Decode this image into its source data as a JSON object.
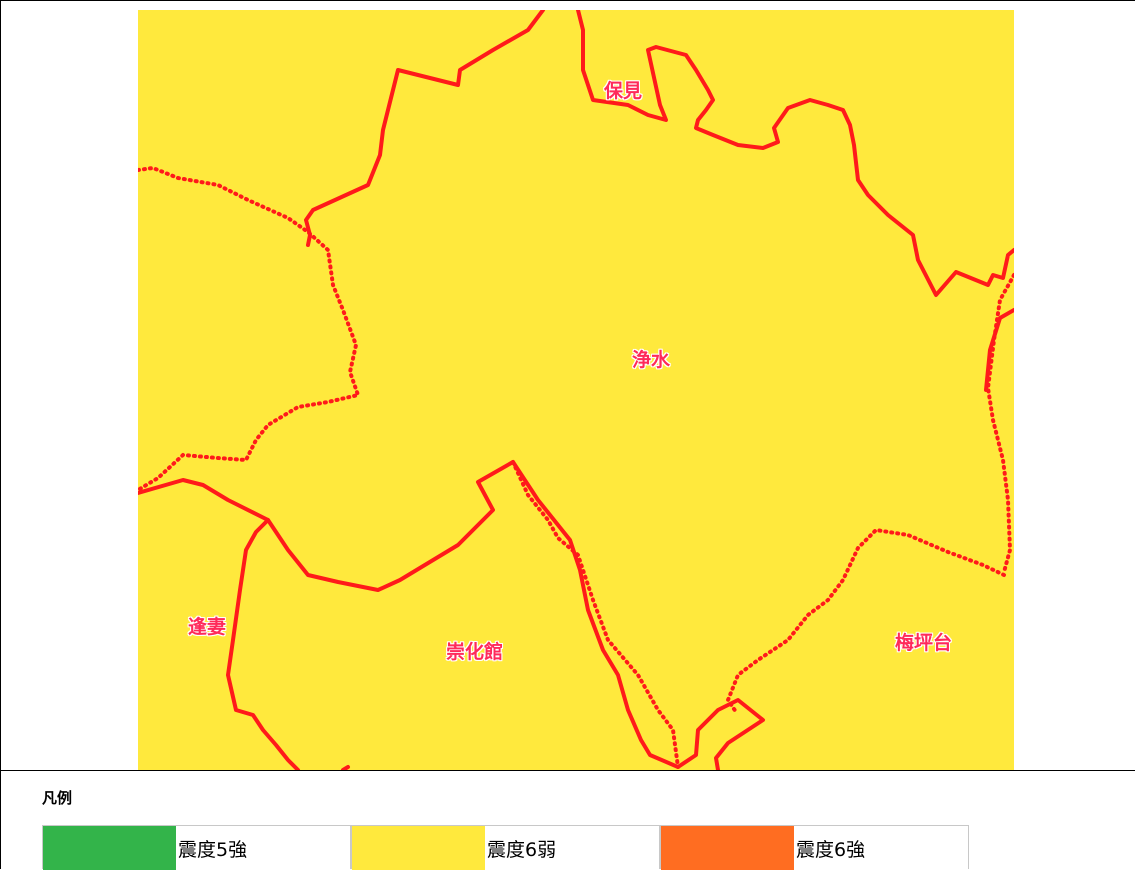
{
  "map": {
    "labels": {
      "hoken": "保見",
      "jousui": "浄水",
      "aizuma": "逢妻",
      "soukakan": "崇化館",
      "umetsubodai": "梅坪台"
    },
    "fill_color": "#ffe93d",
    "boundary_color": "#ff1a1a"
  },
  "legend": {
    "title": "凡例",
    "items": [
      {
        "label": "震度5強",
        "color": "#33b44a"
      },
      {
        "label": "震度6弱",
        "color": "#ffe93d"
      },
      {
        "label": "震度6強",
        "color": "#ff6d21"
      }
    ]
  }
}
